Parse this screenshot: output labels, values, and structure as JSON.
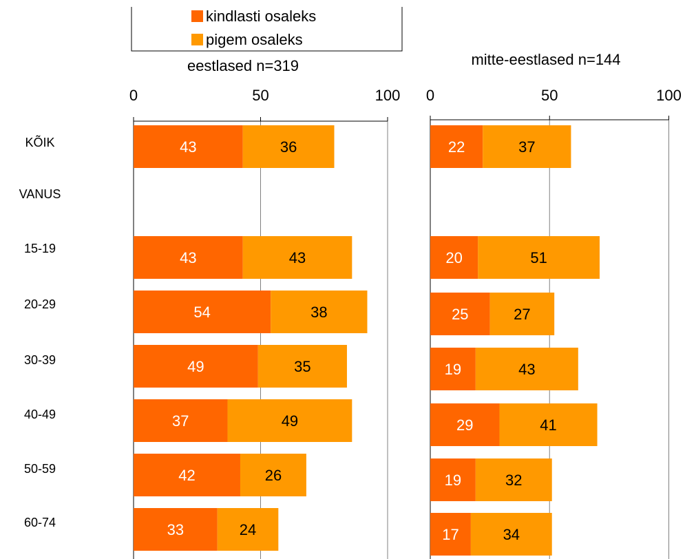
{
  "colors": {
    "kindlasti": "#FF6600",
    "pigem": "#FF9900",
    "grid": "#808080",
    "axis": "#000000",
    "label_on_dark": "#FFFFFF",
    "label_on_light": "#000000"
  },
  "legend": {
    "items": [
      {
        "label": "kindlasti osaleks",
        "color": "#FF6600"
      },
      {
        "label": "pigem osaleks",
        "color": "#FF9900"
      }
    ]
  },
  "row_labels": [
    "KÕIK",
    "VANUS",
    "15-19",
    "20-29",
    "30-39",
    "40-49",
    "50-59",
    "60-74"
  ],
  "chart_data": [
    {
      "type": "bar",
      "orientation": "horizontal",
      "stacked": true,
      "title": "eestlased n=319",
      "xlim": [
        0,
        100
      ],
      "x_ticks": [
        "0",
        "50",
        "100"
      ],
      "grid": true,
      "categories": [
        "KÕIK",
        "VANUS",
        "15-19",
        "20-29",
        "30-39",
        "40-49",
        "50-59",
        "60-74"
      ],
      "series": [
        {
          "name": "kindlasti osaleks",
          "values": [
            43,
            null,
            43,
            54,
            49,
            37,
            42,
            33
          ]
        },
        {
          "name": "pigem osaleks",
          "values": [
            36,
            null,
            43,
            38,
            35,
            49,
            26,
            24
          ]
        }
      ]
    },
    {
      "type": "bar",
      "orientation": "horizontal",
      "stacked": true,
      "title": "mitte-eestlased n=144",
      "xlim": [
        0,
        100
      ],
      "x_ticks": [
        "0",
        "50",
        "100"
      ],
      "grid": true,
      "categories": [
        "KÕIK",
        "VANUS",
        "15-19",
        "20-29",
        "30-39",
        "40-49",
        "50-59",
        "60-74"
      ],
      "series": [
        {
          "name": "kindlasti osaleks",
          "values": [
            22,
            null,
            20,
            25,
            19,
            29,
            19,
            17
          ]
        },
        {
          "name": "pigem osaleks",
          "values": [
            37,
            null,
            51,
            27,
            43,
            41,
            32,
            34
          ]
        }
      ]
    }
  ]
}
